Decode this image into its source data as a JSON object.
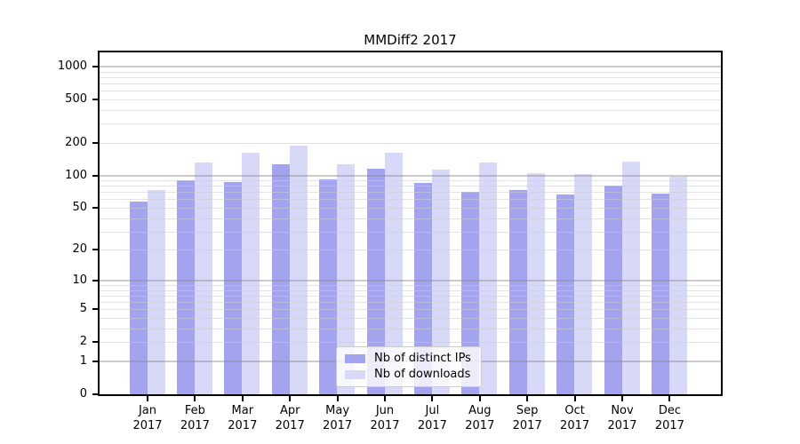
{
  "figure": {
    "background": "#ffffff",
    "text_color": "#000000"
  },
  "chart_data": {
    "type": "bar",
    "title": "MMDiff2 2017",
    "categories": [
      "Jan",
      "Feb",
      "Mar",
      "Apr",
      "May",
      "Jun",
      "Jul",
      "Aug",
      "Sep",
      "Oct",
      "Nov",
      "Dec"
    ],
    "x_year_label": "2017",
    "series": [
      {
        "name": "Nb of distinct IPs",
        "color": "#a3a3f0",
        "values": [
          57,
          90,
          86,
          127,
          92,
          115,
          85,
          70,
          73,
          67,
          80,
          68
        ]
      },
      {
        "name": "Nb of downloads",
        "color": "#d8d8f8",
        "values": [
          73,
          131,
          163,
          189,
          127,
          162,
          114,
          131,
          104,
          103,
          135,
          97
        ]
      }
    ],
    "yticks": [
      0,
      1,
      2,
      5,
      10,
      20,
      50,
      100,
      200,
      500,
      1000
    ],
    "yscale": "log10(value+1)",
    "ylim": [
      0,
      1300
    ],
    "grid": true,
    "grid_major_at": [
      1,
      10,
      100,
      1000
    ],
    "legend_position": "lower center"
  },
  "colors": {
    "bar_ips": "#a3a3f0",
    "bar_downloads": "#d8d8f8",
    "grid_major": "#cbcbcb",
    "grid_minor": "#e3e3e3",
    "axis": "#000000",
    "legend_border": "#cccccc"
  }
}
